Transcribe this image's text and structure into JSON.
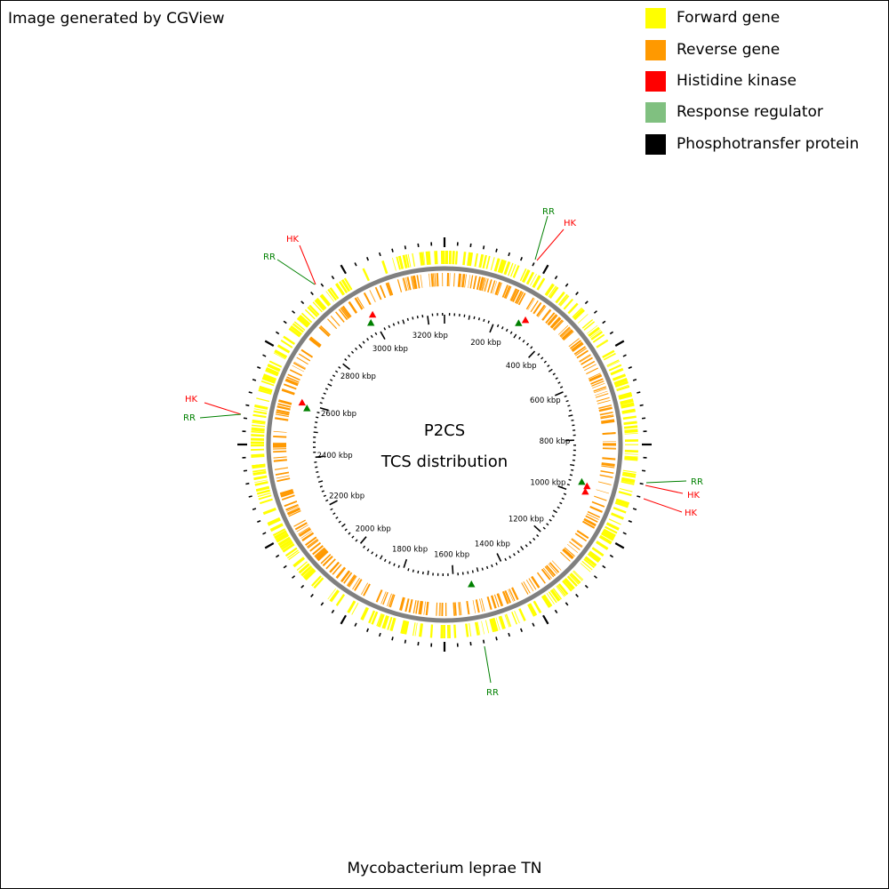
{
  "credit": "Image generated by CGView",
  "title": {
    "line1": "P2CS",
    "line2": "TCS distribution"
  },
  "organism": "Mycobacterium leprae TN",
  "legend": [
    {
      "label": "Forward gene",
      "color": "#ffff00"
    },
    {
      "label": "Reverse gene",
      "color": "#ff9900"
    },
    {
      "label": "Histidine kinase",
      "color": "#ff0000"
    },
    {
      "label": "Response regulator",
      "color": "#80c080"
    },
    {
      "label": "Phosphotransfer protein",
      "color": "#000000"
    }
  ],
  "genome_kbp": 3268,
  "kbp_labels": [
    "200 kbp",
    "400 kbp",
    "600 kbp",
    "800 kbp",
    "1000 kbp",
    "1200 kbp",
    "1400 kbp",
    "1600 kbp",
    "1800 kbp",
    "2000 kbp",
    "2200 kbp",
    "2400 kbp",
    "2600 kbp",
    "2800 kbp",
    "3000 kbp",
    "3200 kbp"
  ],
  "kbp_label_values": [
    200,
    400,
    600,
    800,
    1000,
    1200,
    1400,
    1600,
    1800,
    2000,
    2200,
    2400,
    2600,
    2800,
    3000,
    3200
  ],
  "features": [
    {
      "type": "RR",
      "kbp": 285
    },
    {
      "type": "HK",
      "kbp": 300
    },
    {
      "type": "RR",
      "kbp": 955
    },
    {
      "type": "HK",
      "kbp": 965
    },
    {
      "type": "HK",
      "kbp": 985
    },
    {
      "type": "RR",
      "kbp": 1535
    },
    {
      "type": "RR",
      "kbp": 2585
    },
    {
      "type": "HK",
      "kbp": 2600
    },
    {
      "type": "RR",
      "kbp": 2985
    },
    {
      "type": "HK",
      "kbp": 3005
    }
  ],
  "callouts": [
    {
      "label": "RR",
      "color": "#008000"
    },
    {
      "label": "HK",
      "color": "#ff0000"
    },
    {
      "label": "RR",
      "color": "#008000"
    },
    {
      "label": "HK",
      "color": "#ff0000"
    },
    {
      "label": "HK",
      "color": "#ff0000"
    },
    {
      "label": "RR",
      "color": "#008000"
    },
    {
      "label": "HK",
      "color": "#ff0000"
    },
    {
      "label": "RR",
      "color": "#008000"
    },
    {
      "label": "HK",
      "color": "#ff0000"
    },
    {
      "label": "RR",
      "color": "#008000"
    }
  ],
  "colors": {
    "forward_gene": "#ffff00",
    "reverse_gene": "#ff9900",
    "histidine_kinase": "#ff0000",
    "response_regulator": "#008000",
    "backbone": "#808080",
    "ticks": "#000000"
  }
}
